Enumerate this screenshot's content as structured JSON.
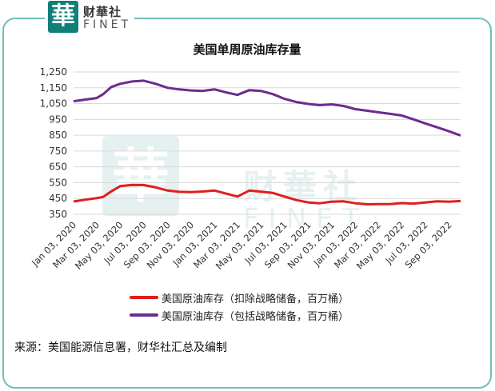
{
  "logo": {
    "char": "華",
    "cn": "财華社",
    "en": "FINET"
  },
  "source": "来源：美国能源信息署，财华社汇总及编制",
  "colors": {
    "frame": "#6fbfb8",
    "series_red": "#e01e1e",
    "series_purple": "#6a2c91",
    "brand": "#0f7f78"
  },
  "chart_data": {
    "type": "line",
    "title": "美国单周原油库存量",
    "yticks": [
      "1,250",
      "1,150",
      "1,050",
      "950",
      "850",
      "750",
      "650",
      "550",
      "450",
      "350"
    ],
    "ytick_values": [
      1250,
      1150,
      1050,
      950,
      850,
      750,
      650,
      550,
      450,
      350
    ],
    "ylim": [
      350,
      1250
    ],
    "xticks": [
      "Jan 03, 2020",
      "Mar 03, 2020",
      "May 03, 2020",
      "Jul 03, 2020",
      "Sep 03, 2020",
      "Nov 03, 2020",
      "Jan 03, 2021",
      "Mar 03, 2021",
      "May 03, 2021",
      "Jul 03, 2021",
      "Sep 03, 2021",
      "Nov 03, 2021",
      "Jan 03, 2022",
      "Mar 03, 2022",
      "May 03, 2022",
      "Jul 03, 2022",
      "Sep 03, 2022"
    ],
    "grid": true,
    "legend_position": "bottom",
    "series": [
      {
        "name": "美国原油库存（扣除战略储备，百万桶）",
        "color": "#e01e1e",
        "points": [
          [
            "2020-01-03",
            431
          ],
          [
            "2020-02-01",
            442
          ],
          [
            "2020-03-03",
            452
          ],
          [
            "2020-03-20",
            460
          ],
          [
            "2020-04-10",
            495
          ],
          [
            "2020-05-03",
            528
          ],
          [
            "2020-06-03",
            536
          ],
          [
            "2020-07-03",
            535
          ],
          [
            "2020-08-03",
            520
          ],
          [
            "2020-09-03",
            500
          ],
          [
            "2020-10-03",
            492
          ],
          [
            "2020-11-03",
            490
          ],
          [
            "2020-12-03",
            494
          ],
          [
            "2021-01-03",
            500
          ],
          [
            "2021-02-03",
            480
          ],
          [
            "2021-03-03",
            462
          ],
          [
            "2021-04-03",
            500
          ],
          [
            "2021-05-03",
            493
          ],
          [
            "2021-06-03",
            485
          ],
          [
            "2021-07-03",
            462
          ],
          [
            "2021-08-03",
            440
          ],
          [
            "2021-09-03",
            425
          ],
          [
            "2021-10-03",
            420
          ],
          [
            "2021-11-03",
            430
          ],
          [
            "2021-12-03",
            432
          ],
          [
            "2022-01-03",
            420
          ],
          [
            "2022-02-03",
            413
          ],
          [
            "2022-03-03",
            414
          ],
          [
            "2022-04-03",
            414
          ],
          [
            "2022-05-03",
            421
          ],
          [
            "2022-06-03",
            418
          ],
          [
            "2022-07-03",
            425
          ],
          [
            "2022-08-03",
            432
          ],
          [
            "2022-09-03",
            430
          ],
          [
            "2022-10-03",
            434
          ]
        ]
      },
      {
        "name": "美国原油库存（包括战略储备，百万桶）",
        "color": "#6a2c91",
        "points": [
          [
            "2020-01-03",
            1065
          ],
          [
            "2020-02-01",
            1075
          ],
          [
            "2020-03-03",
            1085
          ],
          [
            "2020-03-20",
            1110
          ],
          [
            "2020-04-10",
            1155
          ],
          [
            "2020-05-03",
            1175
          ],
          [
            "2020-06-03",
            1190
          ],
          [
            "2020-07-03",
            1195
          ],
          [
            "2020-08-03",
            1175
          ],
          [
            "2020-09-03",
            1150
          ],
          [
            "2020-10-03",
            1140
          ],
          [
            "2020-11-03",
            1133
          ],
          [
            "2020-12-03",
            1130
          ],
          [
            "2021-01-03",
            1140
          ],
          [
            "2021-02-03",
            1120
          ],
          [
            "2021-03-03",
            1105
          ],
          [
            "2021-04-03",
            1135
          ],
          [
            "2021-05-03",
            1130
          ],
          [
            "2021-06-03",
            1110
          ],
          [
            "2021-07-03",
            1080
          ],
          [
            "2021-08-03",
            1060
          ],
          [
            "2021-09-03",
            1048
          ],
          [
            "2021-10-03",
            1040
          ],
          [
            "2021-11-03",
            1045
          ],
          [
            "2021-12-03",
            1035
          ],
          [
            "2022-01-03",
            1015
          ],
          [
            "2022-02-03",
            1005
          ],
          [
            "2022-03-03",
            995
          ],
          [
            "2022-04-03",
            985
          ],
          [
            "2022-05-03",
            975
          ],
          [
            "2022-06-03",
            950
          ],
          [
            "2022-07-03",
            925
          ],
          [
            "2022-08-03",
            900
          ],
          [
            "2022-09-03",
            875
          ],
          [
            "2022-10-03",
            848
          ]
        ]
      }
    ]
  }
}
